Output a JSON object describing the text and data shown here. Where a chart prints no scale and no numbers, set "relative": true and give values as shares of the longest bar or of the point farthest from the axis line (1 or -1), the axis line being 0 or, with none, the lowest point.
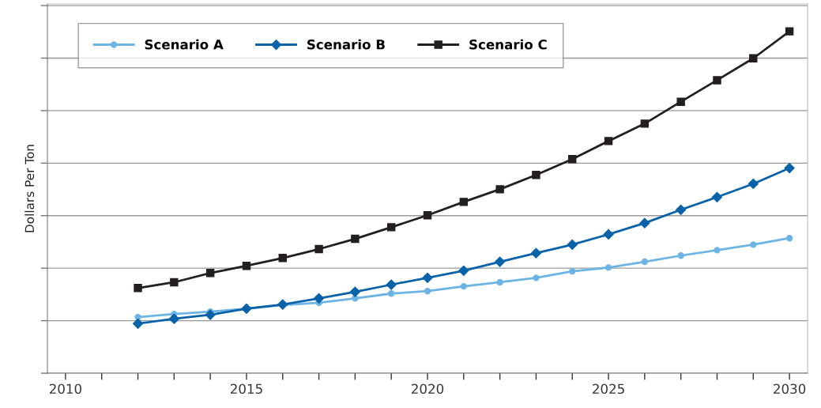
{
  "chart_data": {
    "type": "line",
    "ylabel": "Dollars Per Ton",
    "relative": true,
    "x": [
      2012,
      2013,
      2014,
      2015,
      2016,
      2017,
      2018,
      2019,
      2020,
      2021,
      2022,
      2023,
      2024,
      2025,
      2026,
      2027,
      2028,
      2029,
      2030
    ],
    "xlim": [
      2009.5,
      2030.5
    ],
    "xticks": [
      2010,
      {
        "value": 2011,
        "label": null
      },
      {
        "value": 2012,
        "label": null
      },
      {
        "value": 2013,
        "label": null
      },
      {
        "value": 2014,
        "label": null
      },
      2015,
      {
        "value": 2016,
        "label": null
      },
      {
        "value": 2017,
        "label": null
      },
      {
        "value": 2018,
        "label": null
      },
      {
        "value": 2019,
        "label": null
      },
      2020,
      {
        "value": 2021,
        "label": null
      },
      {
        "value": 2022,
        "label": null
      },
      {
        "value": 2023,
        "label": null
      },
      {
        "value": 2024,
        "label": null
      },
      2025,
      {
        "value": 2026,
        "label": null
      },
      {
        "value": 2027,
        "label": null
      },
      {
        "value": 2028,
        "label": null
      },
      {
        "value": 2029,
        "label": null
      },
      2030
    ],
    "tick_labels": "x",
    "grid": "y",
    "legend": "top left",
    "line_style": "solid",
    "series": [
      {
        "name": "Scenario A",
        "color": "#6cb4e4",
        "marker": "circle",
        "values": [
          0.164,
          0.173,
          0.18,
          0.189,
          0.199,
          0.206,
          0.219,
          0.233,
          0.24,
          0.254,
          0.266,
          0.279,
          0.298,
          0.309,
          0.326,
          0.344,
          0.36,
          0.376,
          0.395
        ]
      },
      {
        "name": "Scenario B",
        "color": "#0a63a8",
        "marker": "diamond",
        "values": [
          0.145,
          0.159,
          0.171,
          0.189,
          0.201,
          0.219,
          0.238,
          0.259,
          0.279,
          0.3,
          0.326,
          0.351,
          0.376,
          0.406,
          0.439,
          0.478,
          0.515,
          0.554,
          0.6
        ]
      },
      {
        "name": "Scenario C",
        "color": "#231f20",
        "marker": "square",
        "values": [
          0.249,
          0.266,
          0.293,
          0.314,
          0.337,
          0.363,
          0.393,
          0.427,
          0.462,
          0.501,
          0.538,
          0.58,
          0.626,
          0.679,
          0.73,
          0.794,
          0.857,
          0.921,
          1.0
        ]
      }
    ]
  }
}
